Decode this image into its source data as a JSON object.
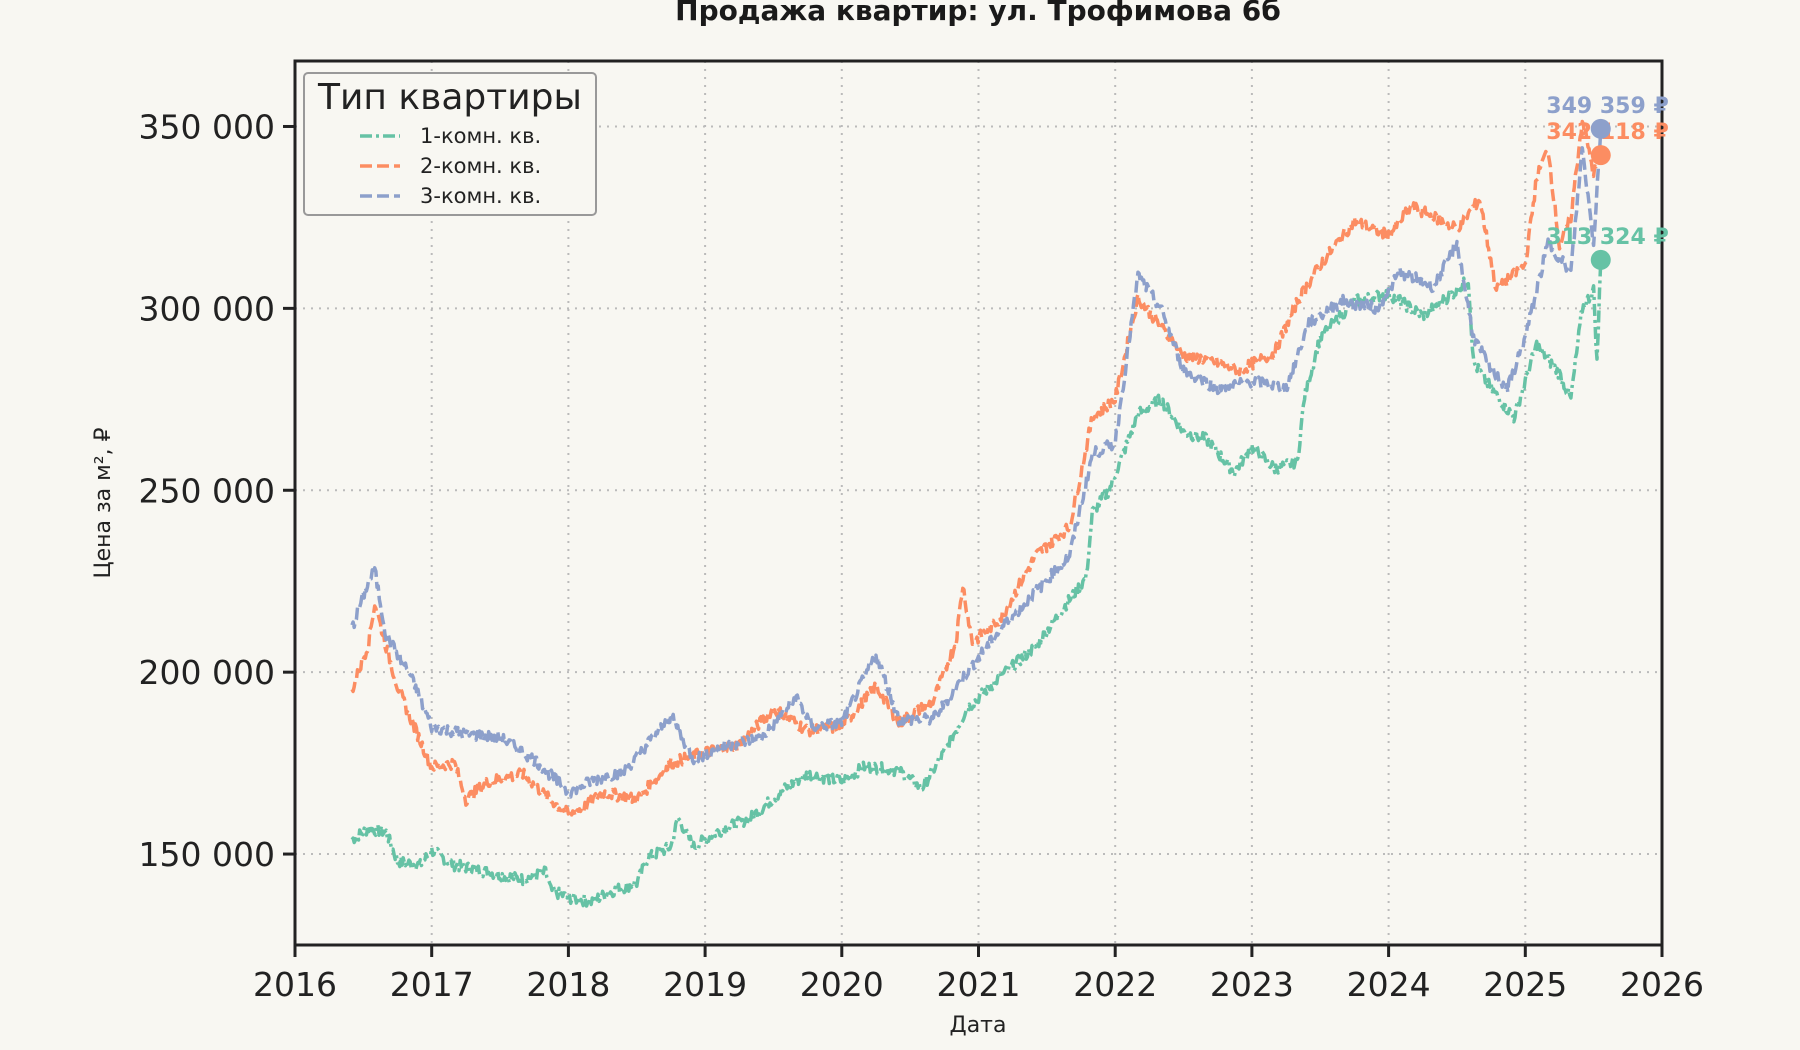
{
  "chart_data": {
    "type": "line",
    "title": "Продажа квартир: ул. Трофимова 6б",
    "xlabel": "Дата",
    "ylabel": "Цена за м², ₽",
    "xlim": [
      2016,
      2026
    ],
    "ylim": [
      125000,
      368000
    ],
    "x_ticks": [
      "2016",
      "2017",
      "2018",
      "2019",
      "2020",
      "2021",
      "2022",
      "2023",
      "2024",
      "2025",
      "2026"
    ],
    "y_ticks": [
      {
        "value": 150000,
        "label": "150 000"
      },
      {
        "value": 200000,
        "label": "200 000"
      },
      {
        "value": 250000,
        "label": "250 000"
      },
      {
        "value": 300000,
        "label": "300 000"
      },
      {
        "value": 350000,
        "label": "350 000"
      }
    ],
    "grid": true,
    "legend": {
      "title": "Тип квартиры",
      "placement": "top-left"
    },
    "series": [
      {
        "name": "1-комн. кв.",
        "color": "#66c2a5",
        "dash": "dashdot",
        "end_label": "313 324 ₽",
        "end_value": 313324,
        "points": [
          [
            "2016-06-01",
            154000
          ],
          [
            "2016-07-15",
            157000
          ],
          [
            "2016-09-01",
            156000
          ],
          [
            "2016-10-01",
            148000
          ],
          [
            "2016-12-01",
            147000
          ],
          [
            "2017-01-01",
            151000
          ],
          [
            "2017-03-01",
            147000
          ],
          [
            "2017-06-01",
            145000
          ],
          [
            "2017-09-01",
            143000
          ],
          [
            "2017-11-01",
            145000
          ],
          [
            "2017-11-15",
            140000
          ],
          [
            "2018-01-01",
            138000
          ],
          [
            "2018-03-01",
            137000
          ],
          [
            "2018-05-01",
            140000
          ],
          [
            "2018-07-01",
            142000
          ],
          [
            "2018-08-01",
            149000
          ],
          [
            "2018-10-01",
            152000
          ],
          [
            "2018-10-20",
            160000
          ],
          [
            "2018-12-01",
            152000
          ],
          [
            "2019-02-01",
            156000
          ],
          [
            "2019-05-01",
            160000
          ],
          [
            "2019-08-01",
            168000
          ],
          [
            "2019-10-01",
            172000
          ],
          [
            "2020-01-01",
            170000
          ],
          [
            "2020-03-01",
            174000
          ],
          [
            "2020-06-01",
            173000
          ],
          [
            "2020-08-01",
            168000
          ],
          [
            "2020-10-01",
            178000
          ],
          [
            "2020-12-01",
            190000
          ],
          [
            "2021-03-01",
            199000
          ],
          [
            "2021-06-01",
            207000
          ],
          [
            "2021-09-01",
            220000
          ],
          [
            "2021-10-15",
            226000
          ],
          [
            "2021-11-01",
            244000
          ],
          [
            "2021-12-15",
            250000
          ],
          [
            "2022-01-15",
            258000
          ],
          [
            "2022-03-01",
            271000
          ],
          [
            "2022-05-01",
            275000
          ],
          [
            "2022-07-01",
            266000
          ],
          [
            "2022-09-01",
            264000
          ],
          [
            "2022-11-15",
            255000
          ],
          [
            "2023-01-01",
            262000
          ],
          [
            "2023-03-01",
            256000
          ],
          [
            "2023-05-01",
            258000
          ],
          [
            "2023-05-20",
            276000
          ],
          [
            "2023-07-01",
            292000
          ],
          [
            "2023-10-01",
            302000
          ],
          [
            "2024-01-01",
            304000
          ],
          [
            "2024-04-01",
            298000
          ],
          [
            "2024-07-01",
            305000
          ],
          [
            "2024-08-01",
            308000
          ],
          [
            "2024-08-15",
            285000
          ],
          [
            "2024-10-01",
            278000
          ],
          [
            "2024-12-01",
            270000
          ],
          [
            "2025-02-01",
            290000
          ],
          [
            "2025-04-01",
            282000
          ],
          [
            "2025-05-01",
            275000
          ],
          [
            "2025-06-01",
            300000
          ],
          [
            "2025-07-01",
            305000
          ],
          [
            "2025-07-10",
            285000
          ],
          [
            "2025-07-20",
            313324
          ]
        ]
      },
      {
        "name": "2-комн. кв.",
        "color": "#fc8d62",
        "dash": "dashed",
        "end_label": "342 118 ₽",
        "end_value": 342118,
        "points": [
          [
            "2016-06-01",
            195000
          ],
          [
            "2016-07-15",
            208000
          ],
          [
            "2016-08-01",
            219000
          ],
          [
            "2016-09-01",
            207000
          ],
          [
            "2016-10-01",
            196000
          ],
          [
            "2016-11-15",
            185000
          ],
          [
            "2017-01-01",
            174000
          ],
          [
            "2017-03-01",
            175000
          ],
          [
            "2017-04-01",
            165000
          ],
          [
            "2017-06-01",
            170000
          ],
          [
            "2017-09-01",
            172000
          ],
          [
            "2017-11-01",
            166000
          ],
          [
            "2018-01-01",
            161000
          ],
          [
            "2018-02-15",
            163000
          ],
          [
            "2018-04-01",
            167000
          ],
          [
            "2018-07-01",
            165000
          ],
          [
            "2018-10-01",
            175000
          ],
          [
            "2019-01-01",
            178000
          ],
          [
            "2019-04-01",
            180000
          ],
          [
            "2019-07-01",
            190000
          ],
          [
            "2019-10-01",
            184000
          ],
          [
            "2020-01-01",
            185000
          ],
          [
            "2020-04-01",
            196000
          ],
          [
            "2020-06-01",
            186000
          ],
          [
            "2020-09-01",
            192000
          ],
          [
            "2020-11-01",
            208000
          ],
          [
            "2020-11-20",
            224000
          ],
          [
            "2020-12-15",
            208000
          ],
          [
            "2021-03-01",
            215000
          ],
          [
            "2021-06-01",
            232000
          ],
          [
            "2021-09-01",
            240000
          ],
          [
            "2021-11-01",
            270000
          ],
          [
            "2022-01-01",
            275000
          ],
          [
            "2022-03-01",
            303000
          ],
          [
            "2022-05-01",
            295000
          ],
          [
            "2022-07-01",
            287000
          ],
          [
            "2022-09-01",
            286000
          ],
          [
            "2022-12-01",
            283000
          ],
          [
            "2023-03-01",
            288000
          ],
          [
            "2023-05-01",
            302000
          ],
          [
            "2023-07-01",
            312000
          ],
          [
            "2023-10-01",
            324000
          ],
          [
            "2024-01-01",
            320000
          ],
          [
            "2024-03-01",
            328000
          ],
          [
            "2024-07-01",
            322000
          ],
          [
            "2024-09-01",
            330000
          ],
          [
            "2024-10-15",
            305000
          ],
          [
            "2025-01-01",
            312000
          ],
          [
            "2025-02-01",
            336000
          ],
          [
            "2025-03-01",
            344000
          ],
          [
            "2025-04-01",
            317000
          ],
          [
            "2025-05-01",
            325000
          ],
          [
            "2025-06-01",
            352000
          ],
          [
            "2025-07-01",
            337000
          ],
          [
            "2025-07-20",
            342118
          ]
        ]
      },
      {
        "name": "3-комн. кв.",
        "color": "#8da0cb",
        "dash": "dashed",
        "end_label": "349 359 ₽",
        "end_value": 349359,
        "points": [
          [
            "2016-06-01",
            212000
          ],
          [
            "2016-07-15",
            225000
          ],
          [
            "2016-08-01",
            228000
          ],
          [
            "2016-09-01",
            210000
          ],
          [
            "2016-11-01",
            200000
          ],
          [
            "2017-01-01",
            185000
          ],
          [
            "2017-04-01",
            183000
          ],
          [
            "2017-07-01",
            182000
          ],
          [
            "2017-10-01",
            176000
          ],
          [
            "2018-01-01",
            167000
          ],
          [
            "2018-03-01",
            170000
          ],
          [
            "2018-06-01",
            173000
          ],
          [
            "2018-10-01",
            188000
          ],
          [
            "2018-12-01",
            176000
          ],
          [
            "2019-03-01",
            180000
          ],
          [
            "2019-06-01",
            182000
          ],
          [
            "2019-09-01",
            193000
          ],
          [
            "2019-10-15",
            185000
          ],
          [
            "2020-01-01",
            186000
          ],
          [
            "2020-04-01",
            205000
          ],
          [
            "2020-06-01",
            187000
          ],
          [
            "2020-09-01",
            187000
          ],
          [
            "2020-12-01",
            200000
          ],
          [
            "2021-03-01",
            212000
          ],
          [
            "2021-06-01",
            222000
          ],
          [
            "2021-09-01",
            232000
          ],
          [
            "2021-11-01",
            260000
          ],
          [
            "2022-01-01",
            263000
          ],
          [
            "2022-03-01",
            309000
          ],
          [
            "2022-05-01",
            300000
          ],
          [
            "2022-07-01",
            283000
          ],
          [
            "2022-10-01",
            278000
          ],
          [
            "2023-01-01",
            280000
          ],
          [
            "2023-04-01",
            278000
          ],
          [
            "2023-06-01",
            296000
          ],
          [
            "2023-09-01",
            302000
          ],
          [
            "2023-12-01",
            300000
          ],
          [
            "2024-02-01",
            310000
          ],
          [
            "2024-05-01",
            306000
          ],
          [
            "2024-07-01",
            318000
          ],
          [
            "2024-08-15",
            292000
          ],
          [
            "2024-10-01",
            283000
          ],
          [
            "2024-11-15",
            278000
          ],
          [
            "2025-01-01",
            292000
          ],
          [
            "2025-03-01",
            318000
          ],
          [
            "2025-05-01",
            310000
          ],
          [
            "2025-06-01",
            344000
          ],
          [
            "2025-07-01",
            318000
          ],
          [
            "2025-07-20",
            349359
          ]
        ]
      }
    ]
  }
}
